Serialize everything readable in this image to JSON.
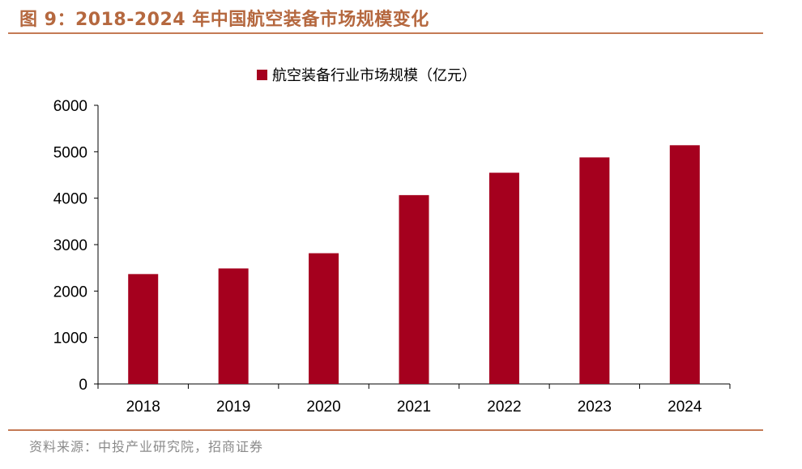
{
  "header": {
    "title": "图 9：2018-2024 年中国航空装备市场规模变化"
  },
  "footer": {
    "source": "资料来源：中投产业研究院，招商证券"
  },
  "chart_data": {
    "type": "bar",
    "title": "图 9：2018-2024 年中国航空装备市场规模变化",
    "xlabel": "",
    "ylabel": "",
    "categories": [
      "2018",
      "2019",
      "2020",
      "2021",
      "2022",
      "2023",
      "2024"
    ],
    "series": [
      {
        "name": "航空装备行业市场规模（亿元）",
        "values": [
          2366,
          2487,
          2815,
          4066,
          4548,
          4878,
          5140
        ],
        "color": "#a5001e"
      }
    ],
    "ylim": [
      0,
      6000
    ],
    "yticks": [
      0,
      1000,
      2000,
      3000,
      4000,
      5000,
      6000
    ],
    "grid": false,
    "legend": "top-center"
  }
}
